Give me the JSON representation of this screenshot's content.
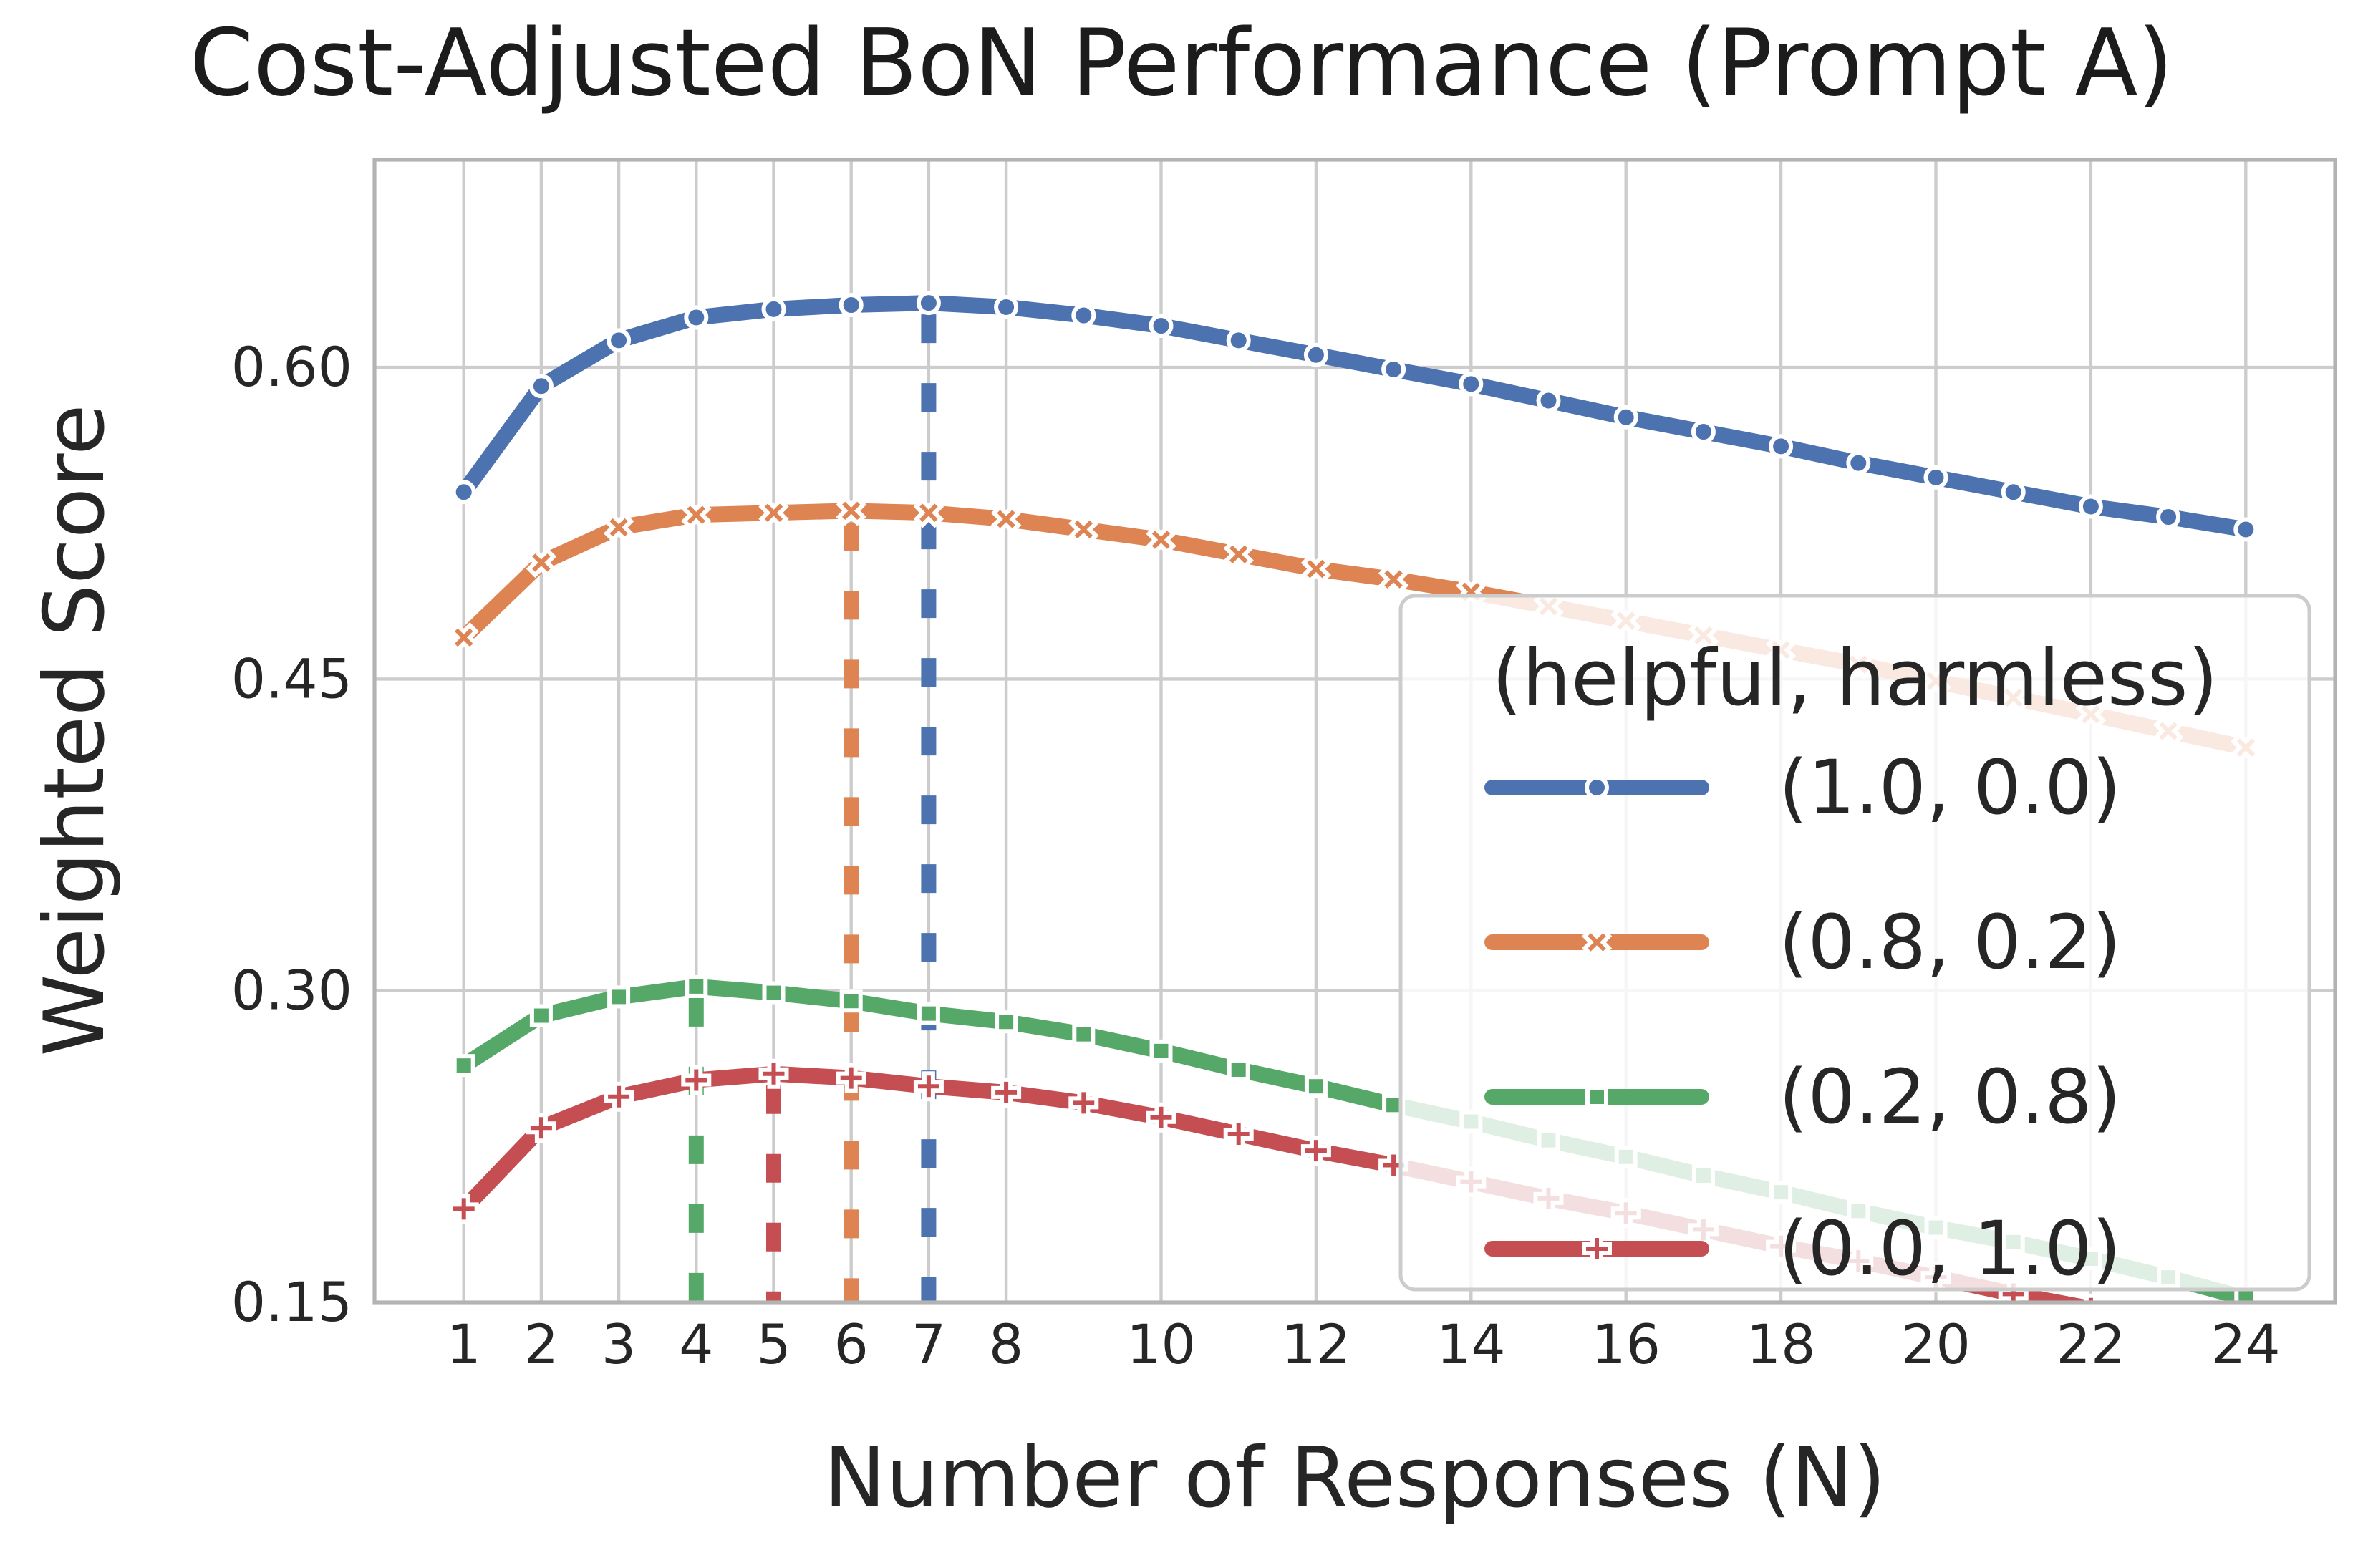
{
  "title": "Cost-Adjusted BoN Performance (Prompt A)",
  "chart_data": {
    "type": "line",
    "title": "Cost-Adjusted BoN Performance (Prompt A)",
    "xlabel": "Number of Responses (N)",
    "ylabel": "Weighted Score",
    "x": [
      1,
      2,
      3,
      4,
      5,
      6,
      7,
      8,
      9,
      10,
      11,
      12,
      13,
      14,
      15,
      16,
      17,
      18,
      19,
      20,
      21,
      22,
      23,
      24
    ],
    "x_tick_labels": [
      "1",
      "2",
      "3",
      "4",
      "5",
      "6",
      "7",
      "8",
      "10",
      "12",
      "14",
      "16",
      "18",
      "20",
      "22",
      "24"
    ],
    "x_tick_values": [
      1,
      2,
      3,
      4,
      5,
      6,
      7,
      8,
      10,
      12,
      14,
      16,
      18,
      20,
      22,
      24
    ],
    "y_tick_labels": [
      "0.15",
      "0.30",
      "0.45",
      "0.60"
    ],
    "y_tick_values": [
      0.15,
      0.3,
      0.45,
      0.6
    ],
    "xlim": [
      -0.15,
      25.15
    ],
    "ylim": [
      0.15,
      0.7
    ],
    "grid": true,
    "background": "#ffffff",
    "grid_color": "#cccccc",
    "spine_color": "#b3b3b3",
    "legend": {
      "title": "(helpful, harmless)",
      "position": "lower right"
    },
    "series": [
      {
        "name": "(1.0, 0.0)",
        "color": "#4C72B0",
        "marker": "circle",
        "optimal_n": 7,
        "values": [
          0.54,
          0.591,
          0.613,
          0.624,
          0.628,
          0.63,
          0.631,
          0.629,
          0.625,
          0.62,
          0.613,
          0.606,
          0.599,
          0.592,
          0.584,
          0.576,
          0.569,
          0.562,
          0.554,
          0.547,
          0.54,
          0.533,
          0.528,
          0.522
        ]
      },
      {
        "name": "(0.8, 0.2)",
        "color": "#DD8452",
        "marker": "x",
        "optimal_n": 6,
        "values": [
          0.47,
          0.506,
          0.523,
          0.529,
          0.53,
          0.531,
          0.53,
          0.527,
          0.522,
          0.517,
          0.51,
          0.503,
          0.498,
          0.492,
          0.485,
          0.478,
          0.471,
          0.464,
          0.457,
          0.449,
          0.441,
          0.433,
          0.425,
          0.417
        ]
      },
      {
        "name": "(0.2, 0.8)",
        "color": "#55A868",
        "marker": "square",
        "optimal_n": 4,
        "values": [
          0.264,
          0.288,
          0.297,
          0.302,
          0.299,
          0.295,
          0.289,
          0.285,
          0.279,
          0.271,
          0.262,
          0.254,
          0.245,
          0.237,
          0.228,
          0.22,
          0.211,
          0.203,
          0.194,
          0.186,
          0.179,
          0.171,
          0.162,
          0.152
        ]
      },
      {
        "name": "(0.0, 1.0)",
        "color": "#C44E52",
        "marker": "plus",
        "optimal_n": 5,
        "values": [
          0.195,
          0.234,
          0.249,
          0.257,
          0.26,
          0.258,
          0.254,
          0.251,
          0.246,
          0.239,
          0.231,
          0.223,
          0.216,
          0.208,
          0.2,
          0.193,
          0.185,
          0.177,
          0.17,
          0.162,
          0.154,
          0.147,
          0.139,
          0.131
        ]
      }
    ]
  }
}
